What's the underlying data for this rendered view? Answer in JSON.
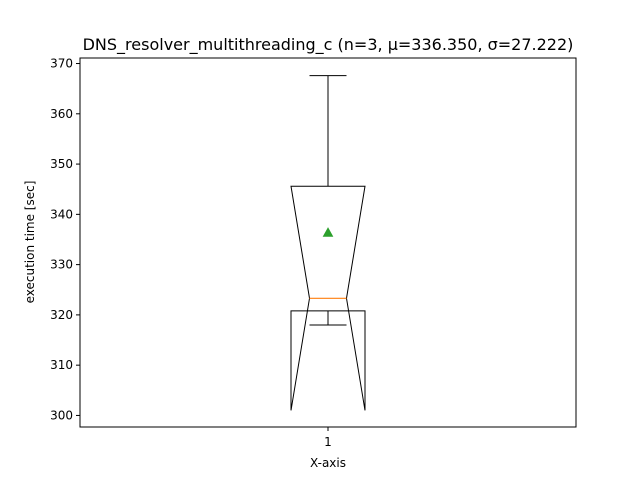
{
  "chart_data": {
    "type": "box",
    "title": "DNS_resolver_multithreading_c (n=3, μ=336.350, σ=27.222)",
    "xlabel": "X-axis",
    "ylabel": "execution time [sec]",
    "categories": [
      "1"
    ],
    "ylim": [
      297.7,
      371.1
    ],
    "yticks": [
      300,
      310,
      320,
      330,
      340,
      350,
      360,
      370
    ],
    "notched": true,
    "grid": false,
    "boxes": [
      {
        "category": "1",
        "whisker_low": 318.0,
        "q1": 320.8,
        "median": 323.3,
        "q3": 345.6,
        "whisker_high": 367.6,
        "notch_low": 301.0,
        "notch_high": 345.6,
        "mean": 336.35
      }
    ],
    "colors": {
      "box": "#000000",
      "median": "#ff7f0e",
      "mean": "#2ca02c"
    }
  }
}
